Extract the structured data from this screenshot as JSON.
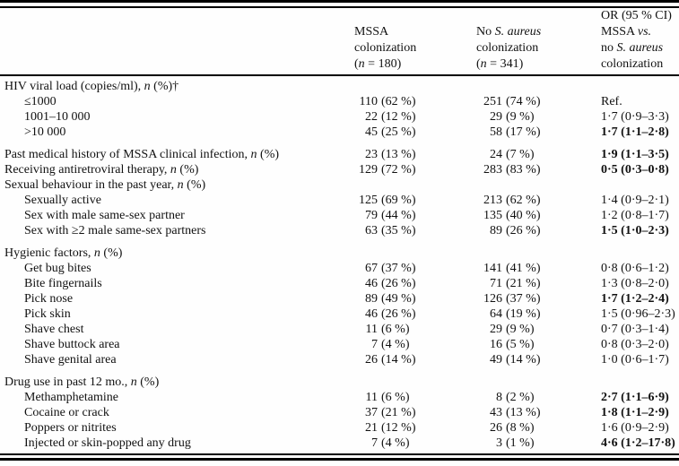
{
  "table": {
    "header": {
      "col_mssa_lines": [
        "MSSA",
        "colonization",
        "(*n* = 180)"
      ],
      "col_nosa_lines": [
        "No *S. aureus*",
        "colonization",
        "(*n* = 341)"
      ],
      "col_or_lines": [
        "OR (95 % CI)",
        "MSSA *vs.*",
        "no *S. aureus*",
        "colonization"
      ]
    },
    "rows": [
      {
        "label": "HIV viral load (copies/ml), *n* (%)†",
        "indent": 0,
        "gap": false,
        "n1": "",
        "p1": "",
        "n2": "",
        "p2": "",
        "or": "",
        "bold": false
      },
      {
        "label": "≤1000",
        "indent": 1,
        "gap": false,
        "n1": "110",
        "p1": "(62 %)",
        "n2": "251",
        "p2": "(74 %)",
        "or": "Ref.",
        "bold": false
      },
      {
        "label": "1001–10 000",
        "indent": 1,
        "gap": false,
        "n1": "22",
        "p1": "(12 %)",
        "n2": "29",
        "p2": "(9 %)",
        "or": "1·7 (0·9–3·3)",
        "bold": false
      },
      {
        "label": ">10 000",
        "indent": 1,
        "gap": false,
        "n1": "45",
        "p1": "(25 %)",
        "n2": "58",
        "p2": "(17 %)",
        "or": "1·7 (1·1–2·8)",
        "bold": true
      },
      {
        "label": "Past medical history of MSSA clinical infection, *n* (%)",
        "indent": 0,
        "gap": true,
        "n1": "23",
        "p1": "(13 %)",
        "n2": "24",
        "p2": "(7 %)",
        "or": "1·9 (1·1–3·5)",
        "bold": true
      },
      {
        "label": "Receiving antiretroviral therapy, *n* (%)",
        "indent": 0,
        "gap": false,
        "n1": "129",
        "p1": "(72 %)",
        "n2": "283",
        "p2": "(83 %)",
        "or": "0·5 (0·3–0·8)",
        "bold": true
      },
      {
        "label": "Sexual behaviour in the past year, *n* (%)",
        "indent": 0,
        "gap": false,
        "n1": "",
        "p1": "",
        "n2": "",
        "p2": "",
        "or": "",
        "bold": false
      },
      {
        "label": "Sexually active",
        "indent": 1,
        "gap": false,
        "n1": "125",
        "p1": "(69 %)",
        "n2": "213",
        "p2": "(62 %)",
        "or": "1·4 (0·9–2·1)",
        "bold": false
      },
      {
        "label": "Sex with male same-sex partner",
        "indent": 1,
        "gap": false,
        "n1": "79",
        "p1": "(44 %)",
        "n2": "135",
        "p2": "(40 %)",
        "or": "1·2 (0·8–1·7)",
        "bold": false
      },
      {
        "label": "Sex with ≥2 male same-sex partners",
        "indent": 1,
        "gap": false,
        "n1": "63",
        "p1": "(35 %)",
        "n2": "89",
        "p2": "(26 %)",
        "or": "1·5 (1·0–2·3)",
        "bold": true
      },
      {
        "label": "Hygienic factors, *n* (%)",
        "indent": 0,
        "gap": true,
        "n1": "",
        "p1": "",
        "n2": "",
        "p2": "",
        "or": "",
        "bold": false
      },
      {
        "label": "Get bug bites",
        "indent": 1,
        "gap": false,
        "n1": "67",
        "p1": "(37 %)",
        "n2": "141",
        "p2": "(41 %)",
        "or": "0·8 (0·6–1·2)",
        "bold": false
      },
      {
        "label": "Bite fingernails",
        "indent": 1,
        "gap": false,
        "n1": "46",
        "p1": "(26 %)",
        "n2": "71",
        "p2": "(21 %)",
        "or": "1·3 (0·8–2·0)",
        "bold": false
      },
      {
        "label": "Pick nose",
        "indent": 1,
        "gap": false,
        "n1": "89",
        "p1": "(49 %)",
        "n2": "126",
        "p2": "(37 %)",
        "or": "1·7 (1·2–2·4)",
        "bold": true
      },
      {
        "label": "Pick skin",
        "indent": 1,
        "gap": false,
        "n1": "46",
        "p1": "(26 %)",
        "n2": "64",
        "p2": "(19 %)",
        "or": "1·5 (0·96–2·3)",
        "bold": false
      },
      {
        "label": "Shave chest",
        "indent": 1,
        "gap": false,
        "n1": "11",
        "p1": "(6 %)",
        "n2": "29",
        "p2": "(9 %)",
        "or": "0·7 (0·3–1·4)",
        "bold": false
      },
      {
        "label": "Shave buttock area",
        "indent": 1,
        "gap": false,
        "n1": "7",
        "p1": "(4 %)",
        "n2": "16",
        "p2": "(5 %)",
        "or": "0·8 (0·3–2·0)",
        "bold": false
      },
      {
        "label": "Shave genital area",
        "indent": 1,
        "gap": false,
        "n1": "26",
        "p1": "(14 %)",
        "n2": "49",
        "p2": "(14 %)",
        "or": "1·0 (0·6–1·7)",
        "bold": false
      },
      {
        "label": "Drug use in past 12 mo., *n* (%)",
        "indent": 0,
        "gap": true,
        "n1": "",
        "p1": "",
        "n2": "",
        "p2": "",
        "or": "",
        "bold": false
      },
      {
        "label": "Methamphetamine",
        "indent": 1,
        "gap": false,
        "n1": "11",
        "p1": "(6 %)",
        "n2": "8",
        "p2": "(2 %)",
        "or": "2·7 (1·1–6·9)",
        "bold": true
      },
      {
        "label": "Cocaine or crack",
        "indent": 1,
        "gap": false,
        "n1": "37",
        "p1": "(21 %)",
        "n2": "43",
        "p2": "(13 %)",
        "or": "1·8 (1·1–2·9)",
        "bold": true
      },
      {
        "label": "Poppers or nitrites",
        "indent": 1,
        "gap": false,
        "n1": "21",
        "p1": "(12 %)",
        "n2": "26",
        "p2": "(8 %)",
        "or": "1·6 (0·9–2·9)",
        "bold": false
      },
      {
        "label": "Injected or skin-popped any drug",
        "indent": 1,
        "gap": false,
        "n1": "7",
        "p1": "(4 %)",
        "n2": "3",
        "p2": "(1 %)",
        "or": "4·6 (1·2–17·8)",
        "bold": true
      }
    ]
  }
}
